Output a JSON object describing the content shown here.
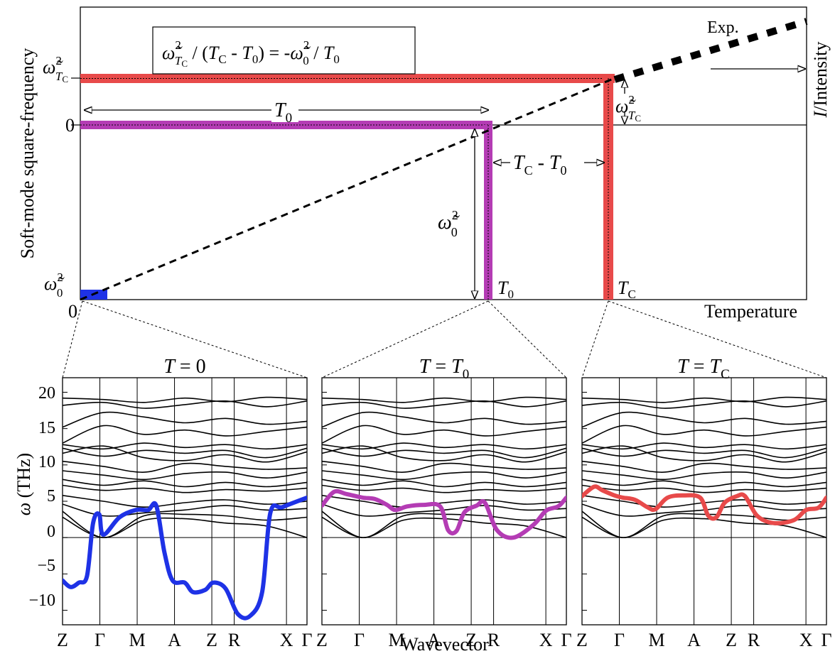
{
  "colors": {
    "tc_band": "#e84a4a",
    "t0_band": "#b43cb4",
    "zero_band": "#1e32e6",
    "phonon_black": "#000000"
  },
  "top_panel": {
    "ylabel": "Soft-mode square-frequency",
    "xlabel": "Temperature",
    "right_label_italic": "I",
    "right_label_rest": "/Intensity",
    "exp_label": "Exp.",
    "formula_main": "ω̃",
    "formula_sub": "T",
    "formula_subsub": "C",
    "formula_sup": "2",
    "formula_mid": " / (",
    "formula_tc": "T",
    "formula_tc_sub": "C",
    "formula_dash": " - ",
    "formula_t0": "T",
    "formula_t0_sub": "0",
    "formula_eq": ") = -",
    "formula_w0": "ω̃",
    "formula_w0_sup": "2",
    "formula_w0_sub": "0",
    "formula_end": " / ",
    "formula_end_t": "T",
    "formula_end_sub": "0",
    "ytick_wtc": "ω̃",
    "ytick_wtc_sub": "T",
    "ytick_wtc_subsub": "C",
    "ytick_wtc_sup": "2",
    "ytick_zero": "0",
    "ytick_w0": "ω̃",
    "ytick_w0_sub": "0",
    "ytick_w0_sup": "2",
    "xtick_zero": "0",
    "t0_arrow_label": "T",
    "t0_arrow_sub": "0",
    "tcmt0_label_t": "T",
    "tcmt0_label_c": "C",
    "tcmt0_label_dash": " - ",
    "tcmt0_label_t2": "T",
    "tcmt0_label_0": "0",
    "w0_arrow_label": "ω̃",
    "w0_arrow_sub": "0",
    "w0_arrow_sup": "2",
    "wtc_arrow_label": "ω̃",
    "wtc_arrow_sub": "T",
    "wtc_arrow_subsub": "C",
    "wtc_arrow_sup": "2",
    "t0_bar_label": "T",
    "t0_bar_sub": "0",
    "tc_bar_label": "T",
    "tc_bar_sub": "C"
  },
  "bottom_panels": {
    "ylabel_symbol": "ω",
    "ylabel_unit": " (THz)",
    "xlabel": "Wavevector",
    "yticks": [
      "20",
      "15",
      "10",
      "5",
      "0",
      "−5",
      "−10"
    ],
    "kpoints": [
      "Z",
      "Γ",
      "M",
      "A",
      "Z",
      "R",
      "X",
      "Γ"
    ],
    "panels": [
      {
        "title_t": "T",
        "title_eq": " = 0",
        "title_sub": ""
      },
      {
        "title_t": "T",
        "title_eq": " = ",
        "title_eq_t": "T",
        "title_sub": "0"
      },
      {
        "title_t": "T",
        "title_eq": " = ",
        "title_eq_t": "T",
        "title_sub": "C"
      }
    ]
  },
  "chart_data": {
    "type": "line",
    "ylim": [
      -12,
      22
    ],
    "yticks": [
      20,
      15,
      10,
      5,
      0,
      -5,
      -10
    ],
    "kpoints": [
      "Z",
      "Γ",
      "M",
      "A",
      "Z",
      "R",
      "X",
      "Γ"
    ],
    "series": [
      {
        "color": "#1e32e6",
        "points": [
          [
            0,
            -5.9
          ],
          [
            0.2,
            -6.8
          ],
          [
            0.4,
            -6.2
          ],
          [
            0.6,
            -5.3
          ],
          [
            0.75,
            2
          ],
          [
            0.9,
            3.2
          ],
          [
            1.0,
            0.4
          ],
          [
            1.4,
            2.8
          ],
          [
            1.8,
            3.8
          ],
          [
            2.1,
            3.8
          ],
          [
            2.3,
            4.4
          ],
          [
            2.5,
            -2
          ],
          [
            2.7,
            -5.9
          ],
          [
            3.0,
            -6.2
          ],
          [
            3.2,
            -7.5
          ],
          [
            3.5,
            -7.2
          ],
          [
            3.7,
            -6.2
          ],
          [
            4.0,
            -7.0
          ],
          [
            4.3,
            -10.5
          ],
          [
            4.6,
            -10.8
          ],
          [
            4.9,
            -7.5
          ],
          [
            5.1,
            3.4
          ],
          [
            5.4,
            4.2
          ],
          [
            6.0,
            5.5
          ]
        ]
      },
      {
        "color": "#b43cb4",
        "points": [
          [
            0,
            4.4
          ],
          [
            0.3,
            6.3
          ],
          [
            0.6,
            6.0
          ],
          [
            1.0,
            5.5
          ],
          [
            1.3,
            5.3
          ],
          [
            1.6,
            4.5
          ],
          [
            1.8,
            3.8
          ],
          [
            2.1,
            4.3
          ],
          [
            2.5,
            4.5
          ],
          [
            2.9,
            4.3
          ],
          [
            3.1,
            1.0
          ],
          [
            3.3,
            0.9
          ],
          [
            3.5,
            3.5
          ],
          [
            3.8,
            4.4
          ],
          [
            4.0,
            4.8
          ],
          [
            4.3,
            1.0
          ],
          [
            4.7,
            0.0
          ],
          [
            5.2,
            1.8
          ],
          [
            5.5,
            3.7
          ],
          [
            5.8,
            4.3
          ],
          [
            6.0,
            5.5
          ]
        ]
      },
      {
        "color": "#e84a4a",
        "points": [
          [
            0,
            5.7
          ],
          [
            0.3,
            7.0
          ],
          [
            0.5,
            6.5
          ],
          [
            0.8,
            5.8
          ],
          [
            1.0,
            5.5
          ],
          [
            1.3,
            5.2
          ],
          [
            1.6,
            4.2
          ],
          [
            1.8,
            3.9
          ],
          [
            2.1,
            5.5
          ],
          [
            2.5,
            5.8
          ],
          [
            2.9,
            5.5
          ],
          [
            3.1,
            3.0
          ],
          [
            3.3,
            2.8
          ],
          [
            3.5,
            4.8
          ],
          [
            3.8,
            5.7
          ],
          [
            4.0,
            5.7
          ],
          [
            4.3,
            3.0
          ],
          [
            4.7,
            2.0
          ],
          [
            5.2,
            2.4
          ],
          [
            5.5,
            3.8
          ],
          [
            5.8,
            4.1
          ],
          [
            6.0,
            5.5
          ]
        ]
      }
    ]
  }
}
